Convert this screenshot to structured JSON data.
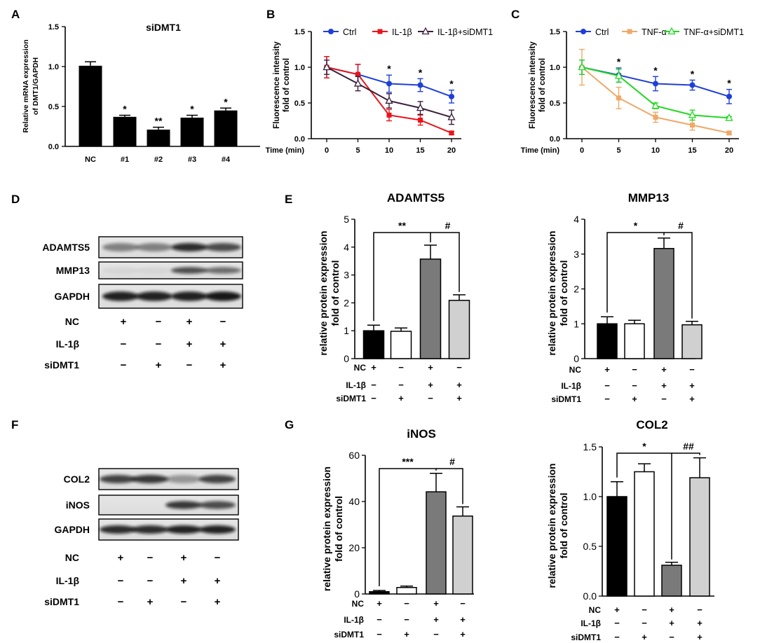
{
  "panel_letters": [
    "A",
    "B",
    "C",
    "D",
    "E",
    "F",
    "G"
  ],
  "chart_data": [
    {
      "id": "A",
      "type": "bar",
      "title": "siDMT1",
      "ylabel": "Relative mRNA expression of DMT1/GAPDH",
      "ylabel_lines": [
        "Relative mRNA expression",
        "of DMT1/GAPDH"
      ],
      "categories": [
        "NC",
        "#1",
        "#2",
        "#3",
        "#4"
      ],
      "values": [
        1.01,
        0.37,
        0.21,
        0.36,
        0.45
      ],
      "errors": [
        0.05,
        0.02,
        0.03,
        0.03,
        0.03
      ],
      "significance": [
        "",
        "*",
        "**",
        "*",
        "*"
      ],
      "ylim": [
        0,
        1.5
      ],
      "yticks": [
        0.0,
        0.5,
        1.0,
        1.5
      ],
      "ytick_labels": [
        "0.0",
        "0.5",
        "1.0",
        "1.5"
      ]
    },
    {
      "id": "B",
      "type": "line",
      "ylabel_lines": [
        "Fluorescence intensity",
        "fold of control"
      ],
      "xlabel": "Time (min)",
      "x": [
        0,
        5,
        10,
        15,
        20
      ],
      "xtick_labels": [
        "0",
        "5",
        "10",
        "15",
        "20"
      ],
      "ylim": [
        0,
        1.5
      ],
      "yticks": [
        0.0,
        0.5,
        1.0,
        1.5
      ],
      "ytick_labels": [
        "0.0",
        "0.5",
        "1.0",
        "1.5"
      ],
      "series": [
        {
          "name": "Ctrl",
          "color": "#1f3fd8",
          "marker": "circle",
          "values": [
            1.0,
            0.9,
            0.77,
            0.75,
            0.59
          ],
          "errors": [
            0.15,
            0.14,
            0.12,
            0.09,
            0.09
          ]
        },
        {
          "name": "IL-1β",
          "color": "#e8141b",
          "marker": "square",
          "values": [
            1.0,
            0.9,
            0.33,
            0.26,
            0.08
          ],
          "errors": [
            0.15,
            0.14,
            0.08,
            0.07,
            0.02
          ]
        },
        {
          "name": "IL-1β+siDMT1",
          "color": "#3a1f3a",
          "marker": "triangle",
          "values": [
            1.0,
            0.77,
            0.53,
            0.43,
            0.3
          ],
          "errors": [
            0.1,
            0.1,
            0.1,
            0.09,
            0.1
          ]
        }
      ],
      "significance_x": [
        10,
        15,
        20
      ],
      "significance": [
        "*",
        "*",
        "*"
      ]
    },
    {
      "id": "C",
      "type": "line",
      "ylabel_lines": [
        "Fluorescence intensity",
        "fold of control"
      ],
      "xlabel": "Time (min)",
      "x": [
        0,
        5,
        10,
        15,
        20
      ],
      "xtick_labels": [
        "0",
        "5",
        "10",
        "15",
        "20"
      ],
      "ylim": [
        0,
        1.5
      ],
      "yticks": [
        0.0,
        0.5,
        1.0,
        1.5
      ],
      "ytick_labels": [
        "0.0",
        "0.5",
        "1.0",
        "1.5"
      ],
      "series": [
        {
          "name": "Ctrl",
          "color": "#1f3fd8",
          "marker": "circle",
          "values": [
            1.0,
            0.89,
            0.77,
            0.75,
            0.59
          ],
          "errors": [
            0.1,
            0.1,
            0.1,
            0.07,
            0.1
          ]
        },
        {
          "name": "TNF-α",
          "color": "#f0a868",
          "marker": "square",
          "values": [
            1.0,
            0.57,
            0.3,
            0.19,
            0.08
          ],
          "errors": [
            0.25,
            0.15,
            0.07,
            0.07,
            0.02
          ]
        },
        {
          "name": "TNF-α+siDMT1",
          "color": "#22d822",
          "marker": "triangle",
          "values": [
            1.0,
            0.88,
            0.46,
            0.33,
            0.29
          ],
          "errors": [
            0.1,
            0.09,
            0.04,
            0.07,
            0.02
          ]
        }
      ],
      "significance_x": [
        5,
        10,
        15,
        20
      ],
      "significance": [
        "*",
        "*",
        "*",
        "*"
      ]
    },
    {
      "id": "E1",
      "type": "bar",
      "title": "ADAMTS5",
      "ylabel_lines": [
        "relative protein expression",
        "fold of control"
      ],
      "categories": [
        "NC/IL-1β/siDMT1: + − −",
        "− − +",
        "+ + −",
        "− + +"
      ],
      "values": [
        1.0,
        0.98,
        3.57,
        2.09
      ],
      "errors": [
        0.2,
        0.12,
        0.5,
        0.2
      ],
      "bar_colors": [
        "#000000",
        "#ffffff",
        "#7a7a7a",
        "#d0d0d0"
      ],
      "ylim": [
        0,
        5
      ],
      "yticks": [
        0,
        1,
        2,
        3,
        4,
        5
      ],
      "ytick_labels": [
        "0",
        "1",
        "2",
        "3",
        "4",
        "5"
      ],
      "comparisons": [
        {
          "from": 0,
          "to": 2,
          "label": "**"
        },
        {
          "from": 2,
          "to": 3,
          "label": "#"
        }
      ]
    },
    {
      "id": "E2",
      "type": "bar",
      "title": "MMP13",
      "ylabel_lines": [
        "relative protein expression",
        "fold of control"
      ],
      "values": [
        1.0,
        1.0,
        3.16,
        0.97
      ],
      "errors": [
        0.2,
        0.1,
        0.3,
        0.1
      ],
      "bar_colors": [
        "#000000",
        "#ffffff",
        "#7a7a7a",
        "#d0d0d0"
      ],
      "ylim": [
        0,
        4
      ],
      "yticks": [
        0,
        1,
        2,
        3,
        4
      ],
      "ytick_labels": [
        "0",
        "1",
        "2",
        "3",
        "4"
      ],
      "comparisons": [
        {
          "from": 0,
          "to": 2,
          "label": "*"
        },
        {
          "from": 2,
          "to": 3,
          "label": "#"
        }
      ]
    },
    {
      "id": "G1",
      "type": "bar",
      "title": "iNOS",
      "ylabel_lines": [
        "relative protein expression",
        "fold of control"
      ],
      "values": [
        1.0,
        2.8,
        44.2,
        33.7
      ],
      "errors": [
        0.5,
        0.6,
        8.0,
        4.0
      ],
      "bar_colors": [
        "#000000",
        "#ffffff",
        "#7a7a7a",
        "#d0d0d0"
      ],
      "ylim": [
        0,
        60
      ],
      "yticks": [
        0,
        20,
        40,
        60
      ],
      "ytick_labels": [
        "0",
        "20",
        "40",
        "60"
      ],
      "comparisons": [
        {
          "from": 0,
          "to": 2,
          "label": "***"
        },
        {
          "from": 2,
          "to": 3,
          "label": "#"
        }
      ]
    },
    {
      "id": "G2",
      "type": "bar",
      "title": "COL2",
      "ylabel_lines": [
        "relative protein expression",
        "fold of control"
      ],
      "values": [
        1.0,
        1.25,
        0.31,
        1.19
      ],
      "errors": [
        0.15,
        0.08,
        0.03,
        0.2
      ],
      "bar_colors": [
        "#000000",
        "#ffffff",
        "#7a7a7a",
        "#d0d0d0"
      ],
      "ylim": [
        0,
        1.5
      ],
      "yticks": [
        0.0,
        0.5,
        1.0,
        1.5
      ],
      "ytick_labels": [
        "0.0",
        "0.5",
        "1.0",
        "1.5"
      ],
      "comparisons": [
        {
          "from": 0,
          "to": 2,
          "label": "*"
        },
        {
          "from": 2,
          "to": 3,
          "label": "##"
        }
      ]
    }
  ],
  "treatment_rows": {
    "labels": [
      "NC",
      "IL-1β",
      "siDMT1"
    ],
    "signs": [
      [
        "+",
        "−",
        "+",
        "−"
      ],
      [
        "−",
        "−",
        "+",
        "+"
      ],
      [
        "−",
        "+",
        "−",
        "+"
      ]
    ]
  },
  "blots": {
    "D": {
      "rows": [
        "ADAMTS5",
        "MMP13",
        "GAPDH"
      ]
    },
    "F": {
      "rows": [
        "COL2",
        "iNOS",
        "GAPDH"
      ]
    }
  }
}
